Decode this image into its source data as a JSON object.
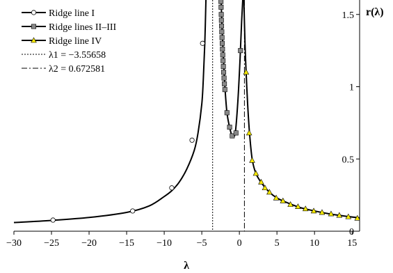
{
  "chart_data": {
    "type": "line",
    "title": "",
    "xlabel": "λ",
    "ylabel": "r(λ)",
    "xlim": [
      -30,
      16
    ],
    "ylim": [
      0,
      1.6
    ],
    "x_ticks": [
      -30,
      -25,
      -20,
      -15,
      -10,
      -5,
      0,
      5,
      10,
      15
    ],
    "x_tick_labels": [
      "−30",
      "−25",
      "−20",
      "−15",
      "−10",
      "−5",
      "0",
      "5",
      "10",
      "15"
    ],
    "y_ticks": [
      0,
      0.5,
      1,
      1.5
    ],
    "y_tick_labels": [
      "0",
      "0.5",
      "1",
      "1.5"
    ],
    "y_axis_side": "right",
    "grid": false,
    "legend_position": "top-left",
    "series": [
      {
        "name": "Ridge line I",
        "marker": "circle-open",
        "color": "#000000",
        "curve": [
          [
            -30,
            0.06
          ],
          [
            -25,
            0.075
          ],
          [
            -20,
            0.095
          ],
          [
            -15,
            0.13
          ],
          [
            -12,
            0.175
          ],
          [
            -10,
            0.24
          ],
          [
            -9,
            0.28
          ],
          [
            -8,
            0.34
          ],
          [
            -7,
            0.43
          ],
          [
            -6,
            0.56
          ],
          [
            -5.5,
            0.68
          ],
          [
            -5,
            0.88
          ],
          [
            -4.8,
            1.05
          ],
          [
            -4.6,
            1.3
          ],
          [
            -4.45,
            1.6
          ]
        ],
        "markers": [
          [
            -24.8,
            0.077
          ],
          [
            -14.2,
            0.14
          ],
          [
            -9,
            0.3
          ],
          [
            -6.3,
            0.63
          ],
          [
            -4.9,
            1.3
          ]
        ]
      },
      {
        "name": "Ridge lines II–III",
        "marker": "square-filled",
        "color": "#888888",
        "curve": [
          [
            -2.45,
            1.6
          ],
          [
            -2.4,
            1.55
          ],
          [
            -2.3,
            1.4
          ],
          [
            -2.2,
            1.28
          ],
          [
            -2.05,
            1.12
          ],
          [
            -1.9,
            0.98
          ],
          [
            -1.65,
            0.82
          ],
          [
            -1.3,
            0.72
          ],
          [
            -0.95,
            0.66
          ],
          [
            -0.55,
            0.68
          ],
          [
            -0.2,
            0.9
          ],
          [
            0.1,
            1.2
          ],
          [
            0.3,
            1.45
          ],
          [
            0.45,
            1.6
          ]
        ],
        "markers": [
          [
            -2.45,
            1.59
          ],
          [
            -2.43,
            1.55
          ],
          [
            -2.41,
            1.5
          ],
          [
            -2.39,
            1.46
          ],
          [
            -2.37,
            1.42
          ],
          [
            -2.34,
            1.38
          ],
          [
            -2.31,
            1.34
          ],
          [
            -2.28,
            1.3
          ],
          [
            -2.25,
            1.26
          ],
          [
            -2.21,
            1.22
          ],
          [
            -2.17,
            1.18
          ],
          [
            -2.13,
            1.14
          ],
          [
            -2.09,
            1.1
          ],
          [
            -2.04,
            1.06
          ],
          [
            -1.99,
            1.02
          ],
          [
            -1.93,
            0.98
          ],
          [
            -1.65,
            0.82
          ],
          [
            -1.3,
            0.72
          ],
          [
            -0.95,
            0.66
          ],
          [
            -0.45,
            0.68
          ],
          [
            0.15,
            1.25
          ]
        ]
      },
      {
        "name": "Ridge line IV",
        "marker": "triangle-filled",
        "color": "#f5e800",
        "curve": [
          [
            0.6,
            1.6
          ],
          [
            0.75,
            1.3
          ],
          [
            0.9,
            1.1
          ],
          [
            1.1,
            0.88
          ],
          [
            1.35,
            0.68
          ],
          [
            1.7,
            0.5
          ],
          [
            2.2,
            0.4
          ],
          [
            3,
            0.33
          ],
          [
            4,
            0.27
          ],
          [
            5,
            0.23
          ],
          [
            6,
            0.205
          ],
          [
            8,
            0.165
          ],
          [
            10,
            0.14
          ],
          [
            12,
            0.12
          ],
          [
            14,
            0.105
          ],
          [
            16,
            0.092
          ]
        ],
        "markers": [
          [
            0.9,
            1.1
          ],
          [
            1.3,
            0.68
          ],
          [
            1.7,
            0.49
          ],
          [
            2.2,
            0.4
          ],
          [
            2.9,
            0.34
          ],
          [
            3.4,
            0.3
          ],
          [
            4,
            0.27
          ],
          [
            4.9,
            0.23
          ],
          [
            5.8,
            0.21
          ],
          [
            6.8,
            0.185
          ],
          [
            7.8,
            0.17
          ],
          [
            8.8,
            0.155
          ],
          [
            9.9,
            0.14
          ],
          [
            11,
            0.13
          ],
          [
            12.2,
            0.12
          ],
          [
            13.3,
            0.11
          ],
          [
            14.5,
            0.1
          ],
          [
            15.7,
            0.09
          ]
        ]
      }
    ],
    "reference_lines": [
      {
        "name": "λ1 = −3.55658",
        "x": -3.55658,
        "style": "dotted"
      },
      {
        "name": "λ2 = 0.672581",
        "x": 0.672581,
        "style": "dashdot"
      }
    ],
    "legend_entries": [
      "Ridge line I",
      "Ridge lines II–III",
      "Ridge line IV",
      "λ1 = −3.55658",
      "λ2 = 0.672581"
    ]
  }
}
